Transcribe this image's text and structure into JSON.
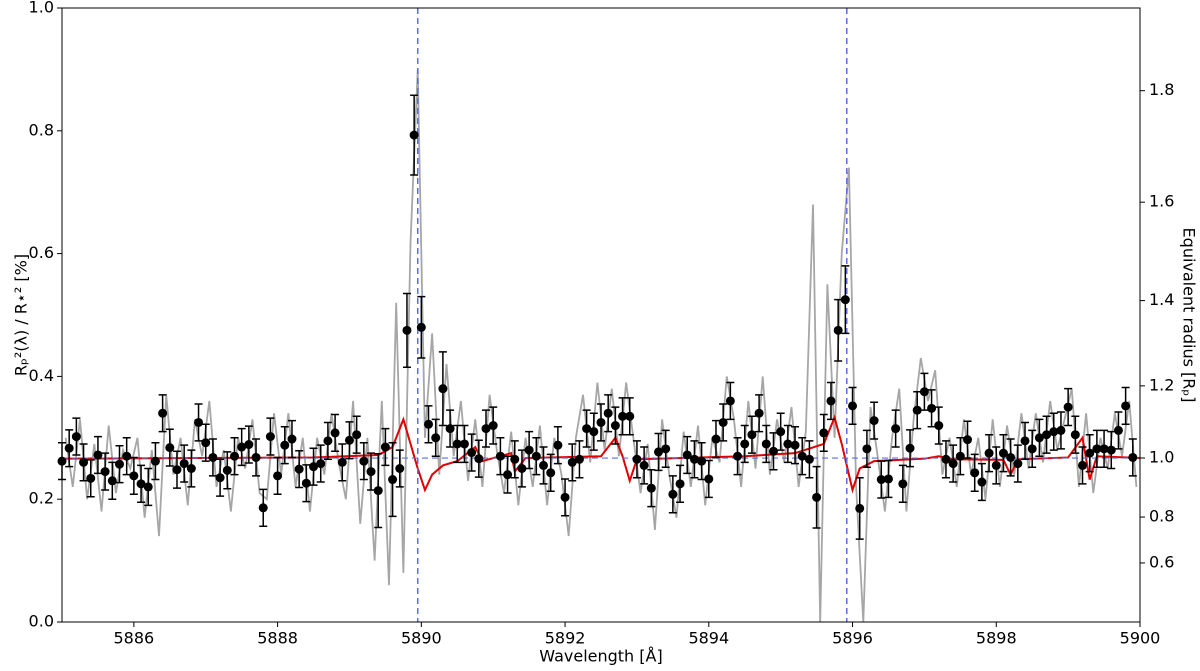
{
  "chart_data": {
    "type": "errorbar",
    "xlabel": "Wavelength [Å]",
    "ylabel": "Rₚ²(λ) / R⋆² [%]",
    "y2label": "Equivalent radius [Rₚ]",
    "xlim": [
      5885,
      5900
    ],
    "xticks": [
      5886,
      5888,
      5890,
      5892,
      5894,
      5896,
      5898,
      5900
    ],
    "ylim": [
      0,
      1
    ],
    "yticks": [
      {
        "value": 0,
        "label": "0.0"
      },
      0.2,
      0.4,
      0.6,
      0.8,
      {
        "value": 1,
        "label": "1.0"
      }
    ],
    "y2lim": [
      0,
      1.935
    ],
    "y2scale": "square",
    "y2ticks": [
      0.6,
      0.8,
      {
        "value": 1,
        "label": "1.0"
      },
      1.2,
      1.4,
      1.6,
      1.8
    ],
    "reference_lines": {
      "x": [
        5889.95,
        5895.92
      ],
      "y": 0.267,
      "color": "#5b6ee1"
    },
    "lines": [
      {
        "color": "#a6a6a6",
        "x": [
          5885.05,
          5885.15,
          5885.25,
          5885.35,
          5885.45,
          5885.55,
          5885.65,
          5885.75,
          5885.85,
          5885.95,
          5886.05,
          5886.15,
          5886.25,
          5886.35,
          5886.45,
          5886.55,
          5886.65,
          5886.75,
          5886.85,
          5886.95,
          5887.05,
          5887.15,
          5887.25,
          5887.35,
          5887.45,
          5887.55,
          5887.65,
          5887.75,
          5887.85,
          5887.95,
          5888.05,
          5888.15,
          5888.25,
          5888.35,
          5888.45,
          5888.55,
          5888.65,
          5888.75,
          5888.85,
          5888.95,
          5889.05,
          5889.15,
          5889.25,
          5889.35,
          5889.45,
          5889.55,
          5889.65,
          5889.75,
          5889.85,
          5889.95,
          5890.05,
          5890.15,
          5890.25,
          5890.35,
          5890.45,
          5890.55,
          5890.65,
          5890.75,
          5890.85,
          5890.95,
          5891.05,
          5891.15,
          5891.25,
          5891.35,
          5891.45,
          5891.55,
          5891.65,
          5891.75,
          5891.85,
          5891.95,
          5892.05,
          5892.15,
          5892.25,
          5892.35,
          5892.45,
          5892.55,
          5892.65,
          5892.75,
          5892.85,
          5892.95,
          5893.05,
          5893.15,
          5893.25,
          5893.35,
          5893.45,
          5893.55,
          5893.65,
          5893.75,
          5893.85,
          5893.95,
          5894.05,
          5894.15,
          5894.25,
          5894.35,
          5894.45,
          5894.55,
          5894.65,
          5894.75,
          5894.85,
          5894.95,
          5895.05,
          5895.15,
          5895.25,
          5895.35,
          5895.45,
          5895.55,
          5895.65,
          5895.75,
          5895.85,
          5895.95,
          5896.05,
          5896.15,
          5896.25,
          5896.35,
          5896.45,
          5896.55,
          5896.65,
          5896.75,
          5896.85,
          5896.95,
          5897.05,
          5897.15,
          5897.25,
          5897.35,
          5897.45,
          5897.55,
          5897.65,
          5897.75,
          5897.85,
          5897.95,
          5898.05,
          5898.15,
          5898.25,
          5898.35,
          5898.45,
          5898.55,
          5898.65,
          5898.75,
          5898.85,
          5898.95,
          5899.05,
          5899.15,
          5899.25,
          5899.35,
          5899.45,
          5899.55,
          5899.65,
          5899.75,
          5899.85,
          5899.95
        ],
        "values": [
          0.3,
          0.22,
          0.33,
          0.2,
          0.29,
          0.18,
          0.32,
          0.21,
          0.28,
          0.25,
          0.3,
          0.17,
          0.28,
          0.14,
          0.37,
          0.24,
          0.3,
          0.19,
          0.33,
          0.27,
          0.36,
          0.22,
          0.28,
          0.18,
          0.3,
          0.25,
          0.33,
          0.21,
          0.2,
          0.34,
          0.24,
          0.34,
          0.22,
          0.3,
          0.18,
          0.3,
          0.24,
          0.34,
          0.26,
          0.2,
          0.36,
          0.16,
          0.3,
          0.1,
          0.36,
          0.06,
          0.52,
          0.08,
          0.62,
          0.9,
          0.3,
          0.47,
          0.24,
          0.42,
          0.27,
          0.36,
          0.23,
          0.33,
          0.22,
          0.37,
          0.28,
          0.21,
          0.31,
          0.19,
          0.3,
          0.22,
          0.32,
          0.19,
          0.3,
          0.24,
          0.14,
          0.3,
          0.37,
          0.26,
          0.39,
          0.28,
          0.38,
          0.27,
          0.39,
          0.3,
          0.21,
          0.29,
          0.15,
          0.33,
          0.24,
          0.17,
          0.31,
          0.22,
          0.32,
          0.19,
          0.3,
          0.26,
          0.4,
          0.33,
          0.22,
          0.36,
          0.25,
          0.4,
          0.24,
          0.33,
          0.26,
          0.35,
          0.22,
          0.31,
          0.68,
          0.0,
          0.55,
          0.3,
          0.6,
          0.74,
          0.22,
          0.0,
          0.35,
          0.27,
          0.18,
          0.3,
          0.38,
          0.18,
          0.33,
          0.43,
          0.36,
          0.41,
          0.24,
          0.3,
          0.22,
          0.33,
          0.24,
          0.3,
          0.2,
          0.33,
          0.22,
          0.32,
          0.24,
          0.34,
          0.25,
          0.34,
          0.26,
          0.36,
          0.28,
          0.33,
          0.38,
          0.22,
          0.34,
          0.21,
          0.3,
          0.25,
          0.34,
          0.27,
          0.36,
          0.22
        ]
      },
      {
        "color": "#e00000",
        "x": [
          5885,
          5888.5,
          5889.4,
          5889.6,
          5889.75,
          5889.85,
          5889.95,
          5890.05,
          5890.15,
          5890.3,
          5890.5,
          5890.75,
          5890.85,
          5891.25,
          5891.3,
          5891.45,
          5892.5,
          5892.7,
          5892.8,
          5892.9,
          5893.0,
          5894.5,
          5895.2,
          5895.6,
          5895.75,
          5895.85,
          5895.93,
          5896.0,
          5896.1,
          5896.3,
          5897.0,
          5897.2,
          5897.4,
          5898.1,
          5898.2,
          5898.3,
          5899.0,
          5899.2,
          5899.3,
          5899.4,
          5900
        ],
        "values": [
          0.266,
          0.268,
          0.272,
          0.285,
          0.33,
          0.29,
          0.25,
          0.215,
          0.24,
          0.255,
          0.262,
          0.285,
          0.262,
          0.275,
          0.245,
          0.267,
          0.27,
          0.3,
          0.27,
          0.23,
          0.265,
          0.27,
          0.275,
          0.29,
          0.333,
          0.29,
          0.25,
          0.215,
          0.25,
          0.262,
          0.266,
          0.27,
          0.265,
          0.264,
          0.24,
          0.265,
          0.268,
          0.3,
          0.232,
          0.27,
          0.267
        ]
      }
    ],
    "points": {
      "color": "#000000",
      "x": [
        5885.0,
        5885.1,
        5885.2,
        5885.3,
        5885.4,
        5885.5,
        5885.6,
        5885.7,
        5885.8,
        5885.9,
        5886.0,
        5886.1,
        5886.2,
        5886.3,
        5886.4,
        5886.5,
        5886.6,
        5886.7,
        5886.8,
        5886.9,
        5887.0,
        5887.1,
        5887.2,
        5887.3,
        5887.4,
        5887.5,
        5887.6,
        5887.7,
        5887.8,
        5887.9,
        5888.0,
        5888.1,
        5888.2,
        5888.3,
        5888.4,
        5888.5,
        5888.6,
        5888.7,
        5888.8,
        5888.9,
        5889.0,
        5889.1,
        5889.2,
        5889.3,
        5889.4,
        5889.5,
        5889.6,
        5889.7,
        5889.8,
        5889.9,
        5890.0,
        5890.1,
        5890.2,
        5890.3,
        5890.4,
        5890.5,
        5890.6,
        5890.7,
        5890.8,
        5890.9,
        5891.0,
        5891.1,
        5891.2,
        5891.3,
        5891.4,
        5891.5,
        5891.6,
        5891.7,
        5891.8,
        5891.9,
        5892.0,
        5892.1,
        5892.2,
        5892.3,
        5892.4,
        5892.5,
        5892.6,
        5892.7,
        5892.8,
        5892.9,
        5893.0,
        5893.1,
        5893.2,
        5893.3,
        5893.4,
        5893.5,
        5893.6,
        5893.7,
        5893.8,
        5893.9,
        5894.0,
        5894.1,
        5894.2,
        5894.3,
        5894.4,
        5894.5,
        5894.6,
        5894.7,
        5894.8,
        5894.9,
        5895.0,
        5895.1,
        5895.2,
        5895.3,
        5895.4,
        5895.5,
        5895.6,
        5895.7,
        5895.8,
        5895.9,
        5896.0,
        5896.1,
        5896.2,
        5896.3,
        5896.4,
        5896.5,
        5896.6,
        5896.7,
        5896.8,
        5896.9,
        5897.0,
        5897.1,
        5897.2,
        5897.3,
        5897.4,
        5897.5,
        5897.6,
        5897.7,
        5897.8,
        5897.9,
        5898.0,
        5898.1,
        5898.2,
        5898.3,
        5898.4,
        5898.5,
        5898.6,
        5898.7,
        5898.8,
        5898.9,
        5899.0,
        5899.1,
        5899.2,
        5899.3,
        5899.4,
        5899.5,
        5899.6,
        5899.7,
        5899.8,
        5899.9
      ],
      "values": [
        0.262,
        0.283,
        0.302,
        0.26,
        0.234,
        0.272,
        0.245,
        0.23,
        0.257,
        0.27,
        0.238,
        0.225,
        0.22,
        0.262,
        0.34,
        0.284,
        0.248,
        0.258,
        0.25,
        0.325,
        0.292,
        0.268,
        0.235,
        0.247,
        0.27,
        0.285,
        0.289,
        0.268,
        0.186,
        0.302,
        0.238,
        0.288,
        0.298,
        0.249,
        0.226,
        0.253,
        0.258,
        0.295,
        0.308,
        0.26,
        0.296,
        0.305,
        0.262,
        0.245,
        0.214,
        0.285,
        0.232,
        0.25,
        0.475,
        0.793,
        0.48,
        0.322,
        0.3,
        0.38,
        0.315,
        0.29,
        0.29,
        0.276,
        0.266,
        0.315,
        0.32,
        0.27,
        0.24,
        0.265,
        0.25,
        0.28,
        0.27,
        0.255,
        0.243,
        0.288,
        0.203,
        0.26,
        0.265,
        0.315,
        0.31,
        0.325,
        0.34,
        0.32,
        0.335,
        0.335,
        0.265,
        0.255,
        0.218,
        0.277,
        0.282,
        0.208,
        0.225,
        0.272,
        0.265,
        0.262,
        0.233,
        0.298,
        0.325,
        0.36,
        0.27,
        0.29,
        0.305,
        0.34,
        0.29,
        0.278,
        0.31,
        0.29,
        0.288,
        0.27,
        0.265,
        0.203,
        0.308,
        0.36,
        0.475,
        0.525,
        0.352,
        0.185,
        0.282,
        0.328,
        0.232,
        0.233,
        0.315,
        0.225,
        0.283,
        0.345,
        0.375,
        0.348,
        0.32,
        0.265,
        0.258,
        0.27,
        0.297,
        0.243,
        0.228,
        0.275,
        0.255,
        0.275,
        0.268,
        0.258,
        0.295,
        0.282,
        0.3,
        0.305,
        0.31,
        0.312,
        0.35,
        0.305,
        0.255,
        0.275,
        0.282,
        0.282,
        0.28,
        0.312,
        0.352,
        0.268
      ],
      "errors": [
        0.03,
        0.03,
        0.03,
        0.03,
        0.03,
        0.03,
        0.03,
        0.03,
        0.03,
        0.03,
        0.03,
        0.03,
        0.03,
        0.03,
        0.03,
        0.03,
        0.03,
        0.03,
        0.03,
        0.03,
        0.03,
        0.03,
        0.03,
        0.03,
        0.03,
        0.03,
        0.03,
        0.03,
        0.03,
        0.03,
        0.03,
        0.03,
        0.03,
        0.03,
        0.03,
        0.03,
        0.03,
        0.03,
        0.03,
        0.03,
        0.03,
        0.03,
        0.03,
        0.03,
        0.06,
        0.03,
        0.06,
        0.03,
        0.06,
        0.065,
        0.05,
        0.03,
        0.03,
        0.06,
        0.03,
        0.03,
        0.03,
        0.03,
        0.03,
        0.03,
        0.03,
        0.03,
        0.03,
        0.03,
        0.03,
        0.03,
        0.03,
        0.03,
        0.03,
        0.03,
        0.03,
        0.03,
        0.03,
        0.03,
        0.03,
        0.03,
        0.03,
        0.03,
        0.03,
        0.03,
        0.03,
        0.03,
        0.03,
        0.03,
        0.03,
        0.03,
        0.03,
        0.03,
        0.03,
        0.03,
        0.03,
        0.03,
        0.03,
        0.03,
        0.03,
        0.03,
        0.03,
        0.03,
        0.03,
        0.03,
        0.03,
        0.03,
        0.03,
        0.03,
        0.03,
        0.05,
        0.03,
        0.03,
        0.05,
        0.055,
        0.03,
        0.05,
        0.03,
        0.03,
        0.03,
        0.03,
        0.03,
        0.03,
        0.03,
        0.03,
        0.03,
        0.03,
        0.03,
        0.03,
        0.03,
        0.03,
        0.03,
        0.03,
        0.03,
        0.03,
        0.03,
        0.03,
        0.03,
        0.03,
        0.03,
        0.03,
        0.03,
        0.03,
        0.03,
        0.03,
        0.03,
        0.03,
        0.03,
        0.03,
        0.03,
        0.03,
        0.03,
        0.03,
        0.03,
        0.03
      ]
    }
  }
}
